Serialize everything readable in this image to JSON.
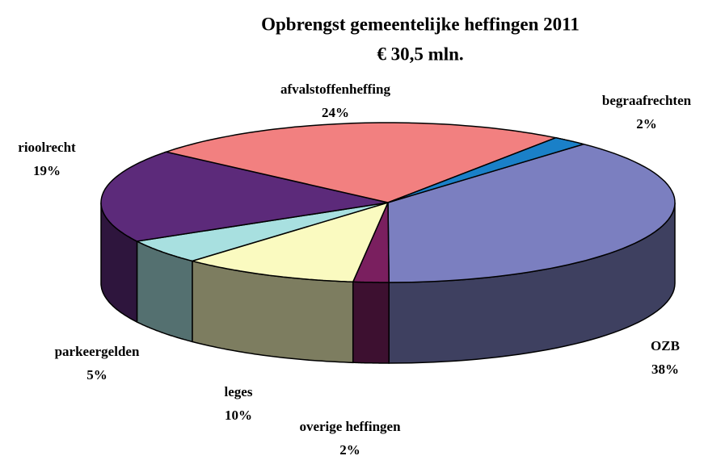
{
  "chart_data": {
    "type": "pie3d",
    "title": "Opbrengst gemeentelijke heffingen 2011",
    "subtitle": "€ 30,5 mln.",
    "categories": [
      "OZB",
      "overige heffingen",
      "leges",
      "parkeergelden",
      "rioolrecht",
      "afvalstoffenheffing",
      "begraafrechten"
    ],
    "values": [
      38,
      2,
      10,
      5,
      19,
      24,
      2
    ],
    "value_labels": [
      "38%",
      "2%",
      "10%",
      "5%",
      "19%",
      "24%",
      "2%"
    ],
    "colors": [
      "#7b7fc0",
      "#7a1f5f",
      "#fafac0",
      "#a8e0e0",
      "#5c2a7a",
      "#f28080",
      "#1a80c8"
    ]
  }
}
